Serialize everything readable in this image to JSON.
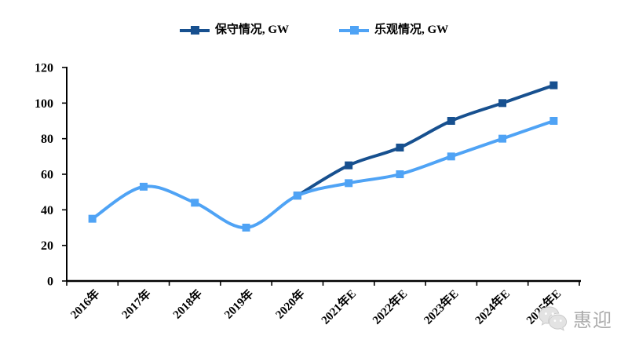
{
  "legend": {
    "items": [
      {
        "label": "保守情况, GW",
        "color": "#17508F"
      },
      {
        "label": "乐观情况, GW",
        "color": "#4FA3F5"
      }
    ]
  },
  "chart_data": {
    "type": "line",
    "title": "",
    "categories": [
      "2016年",
      "2017年",
      "2018年",
      "2019年",
      "2020年",
      "2021年E",
      "2022年E",
      "2023年E",
      "2024年E",
      "2025年E"
    ],
    "series": [
      {
        "name": "保守情况, GW",
        "color": "#17508F",
        "values": [
          null,
          null,
          null,
          null,
          48,
          65,
          75,
          90,
          100,
          110
        ]
      },
      {
        "name": "乐观情况, GW",
        "color": "#4FA3F5",
        "values": [
          35,
          53,
          44,
          30,
          48,
          55,
          60,
          70,
          80,
          90
        ]
      }
    ],
    "xlabel": "",
    "ylabel": "",
    "ylim": [
      0,
      120
    ],
    "yticks": [
      0,
      20,
      40,
      60,
      80,
      100,
      120
    ],
    "grid": false,
    "legend_position": "top",
    "marker": "square",
    "line_style": "smooth"
  },
  "watermark": {
    "icon": "wechat-icon",
    "text": "惠迎"
  },
  "colors": {
    "axis": "#000000",
    "background": "#ffffff"
  }
}
